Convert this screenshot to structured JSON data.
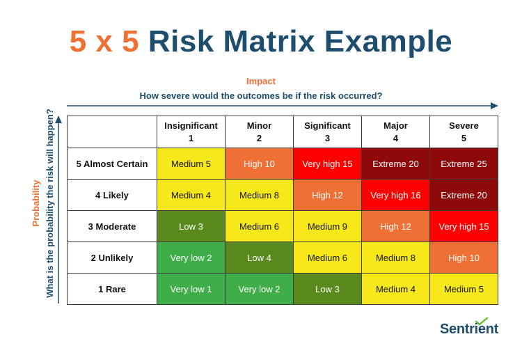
{
  "title": {
    "part1": "5 x 5",
    "part2": "Risk Matrix Example"
  },
  "impact": {
    "label": "Impact",
    "question": "How severe would the outcomes be if the risk occurred?"
  },
  "probability": {
    "label": "Probability",
    "question": "What is the probability the risk will happen?"
  },
  "columns": [
    {
      "name": "Insignificant",
      "num": "1"
    },
    {
      "name": "Minor",
      "num": "2"
    },
    {
      "name": "Significant",
      "num": "3"
    },
    {
      "name": "Major",
      "num": "4"
    },
    {
      "name": "Severe",
      "num": "5"
    }
  ],
  "rows": [
    {
      "label": "5 Almost Certain",
      "cells": [
        {
          "text": "Medium 5",
          "level": "medium"
        },
        {
          "text": "High 10",
          "level": "high"
        },
        {
          "text": "Very high 15",
          "level": "veryhigh"
        },
        {
          "text": "Extreme 20",
          "level": "extreme"
        },
        {
          "text": "Extreme 25",
          "level": "extreme"
        }
      ]
    },
    {
      "label": "4 Likely",
      "cells": [
        {
          "text": "Medium 4",
          "level": "medium"
        },
        {
          "text": "Medium 8",
          "level": "medium"
        },
        {
          "text": "High 12",
          "level": "high"
        },
        {
          "text": "Very high 16",
          "level": "veryhigh"
        },
        {
          "text": "Extreme 20",
          "level": "extreme"
        }
      ]
    },
    {
      "label": "3 Moderate",
      "cells": [
        {
          "text": "Low 3",
          "level": "low"
        },
        {
          "text": "Medium 6",
          "level": "medium"
        },
        {
          "text": "Medium 9",
          "level": "medium"
        },
        {
          "text": "High 12",
          "level": "high"
        },
        {
          "text": "Very high 15",
          "level": "veryhigh"
        }
      ]
    },
    {
      "label": "2 Unlikely",
      "cells": [
        {
          "text": "Very low 2",
          "level": "verylow"
        },
        {
          "text": "Low 4",
          "level": "low"
        },
        {
          "text": "Medium 6",
          "level": "medium"
        },
        {
          "text": "Medium 8",
          "level": "medium"
        },
        {
          "text": "High 10",
          "level": "high"
        }
      ]
    },
    {
      "label": "1 Rare",
      "cells": [
        {
          "text": "Very low 1",
          "level": "verylow"
        },
        {
          "text": "Very low 2",
          "level": "verylow"
        },
        {
          "text": "Low 3",
          "level": "low"
        },
        {
          "text": "Medium 4",
          "level": "medium"
        },
        {
          "text": "Medium 5",
          "level": "medium"
        }
      ]
    }
  ],
  "levelColors": {
    "verylow": "#3fae49",
    "low": "#5a8a1e",
    "medium": "#f7e81c",
    "high": "#ee7034",
    "veryhigh": "#fe0000",
    "extreme": "#8e0a0a"
  },
  "accentColors": {
    "orange": "#ee7034",
    "navy": "#1e4e6e"
  },
  "logo": {
    "text": "Sentrient",
    "icon": "checkmark-icon"
  }
}
